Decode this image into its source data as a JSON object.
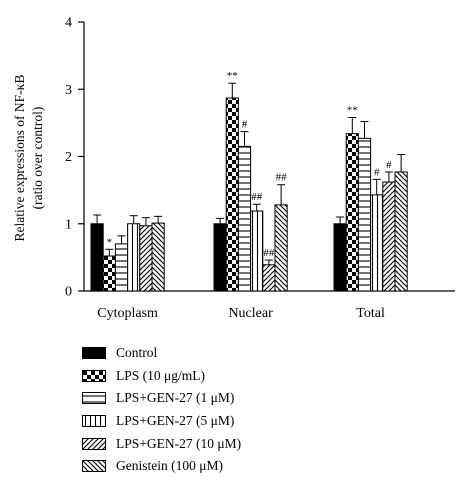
{
  "chart_data": {
    "type": "bar",
    "ylabel": "Relative expressions of NF-κB",
    "ylabel2": "(ratio over control)",
    "ylim": [
      0,
      4
    ],
    "yticks": [
      "0",
      "1",
      "2",
      "3",
      "4"
    ],
    "categories": [
      "Cytoplasm",
      "Nuclear",
      "Total"
    ],
    "series": [
      {
        "name": "Control",
        "pattern": "solid",
        "values": [
          1.0,
          1.0,
          1.0
        ],
        "errors": [
          0.13,
          0.08,
          0.1
        ],
        "annotations": [
          "",
          "",
          ""
        ]
      },
      {
        "name": "LPS (10 μg/mL)",
        "pattern": "checker",
        "values": [
          0.52,
          2.87,
          2.34
        ],
        "errors": [
          0.1,
          0.22,
          0.24
        ],
        "annotations": [
          "*",
          "**",
          "**"
        ]
      },
      {
        "name": "LPS+GEN-27 (1 μM)",
        "pattern": "hlines",
        "values": [
          0.7,
          2.15,
          2.27
        ],
        "errors": [
          0.12,
          0.22,
          0.25
        ],
        "annotations": [
          "",
          "#",
          ""
        ]
      },
      {
        "name": "LPS+GEN-27 (5 μM)",
        "pattern": "vlines",
        "values": [
          1.0,
          1.19,
          1.43
        ],
        "errors": [
          0.12,
          0.1,
          0.23
        ],
        "annotations": [
          "",
          "##",
          "#"
        ]
      },
      {
        "name": "LPS+GEN-27 (10 μM)",
        "pattern": "diagfwd",
        "values": [
          0.97,
          0.39,
          1.62
        ],
        "errors": [
          0.12,
          0.07,
          0.15
        ],
        "annotations": [
          "",
          "##",
          "#"
        ]
      },
      {
        "name": "Genistein (100 μM)",
        "pattern": "diagback",
        "values": [
          1.01,
          1.28,
          1.77
        ],
        "errors": [
          0.1,
          0.3,
          0.26
        ],
        "annotations": [
          "",
          "##",
          ""
        ]
      }
    ],
    "legend_position": "bottom",
    "grid": false
  },
  "legend": {
    "items": [
      "Control",
      "LPS (10 μg/mL)",
      "LPS+GEN-27 (1 μM)",
      "LPS+GEN-27 (5 μM)",
      "LPS+GEN-27 (10 μM)",
      "Genistein (100 μM)"
    ]
  }
}
